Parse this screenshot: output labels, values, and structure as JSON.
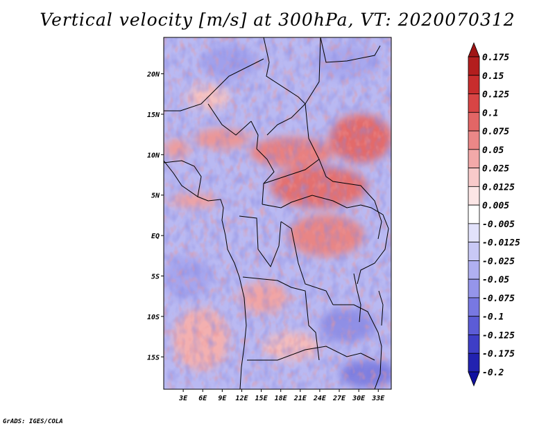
{
  "title": "Vertical velocity [m/s] at 300hPa, VT: 2020070312",
  "footer": "GrADS: IGES/COLA",
  "map": {
    "projection": "lat-lon",
    "lon_range": [
      0,
      35
    ],
    "lat_range": [
      -19,
      24.5
    ],
    "x_ticks": [
      "3E",
      "6E",
      "9E",
      "12E",
      "15E",
      "18E",
      "21E",
      "24E",
      "27E",
      "30E",
      "33E"
    ],
    "x_tick_values": [
      3,
      6,
      9,
      12,
      15,
      18,
      21,
      24,
      27,
      30,
      33
    ],
    "y_ticks": [
      "20N",
      "15N",
      "10N",
      "5N",
      "EQ",
      "5S",
      "10S",
      "15S"
    ],
    "y_tick_values": [
      20,
      15,
      10,
      5,
      0,
      -5,
      -10,
      -15
    ],
    "field": "Vertical velocity",
    "level": "300hPa",
    "units": "m/s"
  },
  "colorbar": {
    "labels": [
      "0.175",
      "0.15",
      "0.125",
      "0.1",
      "0.075",
      "0.05",
      "0.025",
      "0.0125",
      "0.005",
      "-0.005",
      "-0.0125",
      "-0.025",
      "-0.05",
      "-0.075",
      "-0.1",
      "-0.125",
      "-0.175",
      "-0.2"
    ],
    "colors": [
      "#a01515",
      "#b31e1e",
      "#c82d2d",
      "#d84545",
      "#e36666",
      "#eb8787",
      "#f2a9a9",
      "#f8caca",
      "#fce6e6",
      "#ffffff",
      "#e2e2fb",
      "#c9c9f6",
      "#b0b0f1",
      "#9595ea",
      "#7878e2",
      "#5c5cd6",
      "#3e3ec6",
      "#2222b0",
      "#1111a0"
    ]
  }
}
